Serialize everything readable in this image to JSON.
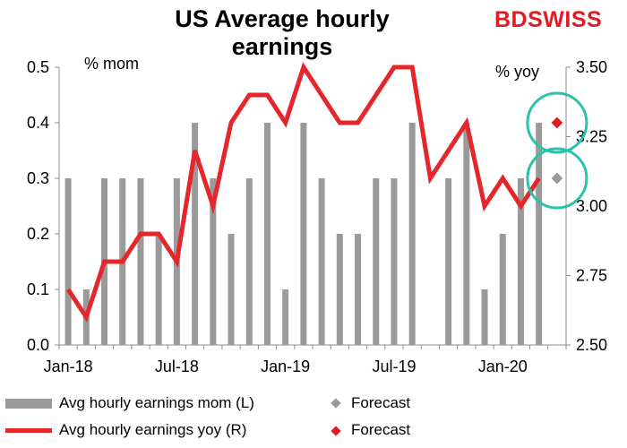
{
  "header": {
    "title_line1": "US Average hourly",
    "title_line2": "earnings",
    "logo_bd": "BD",
    "logo_swiss": "SWISS"
  },
  "axis_units": {
    "left": "% mom",
    "right": "% yoy"
  },
  "legend": {
    "mom": "Avg hourly earnings mom (L)",
    "mom_forecast": "Forecast",
    "yoy": "Avg hourly earnings yoy (R)",
    "yoy_forecast": "Forecast"
  },
  "colors": {
    "bar": "#9a9a9a",
    "line": "#e5262b",
    "forecast_mom": "#9a9a9a",
    "forecast_yoy": "#e11b22",
    "highlight_circle": "#2bc2a9"
  },
  "chart_data": {
    "type": "bar",
    "title": "US Average hourly earnings",
    "x_ticks": [
      "Jan-18",
      "Jul-18",
      "Jan-19",
      "Jul-19",
      "Jan-20"
    ],
    "left_axis": {
      "label": "% mom",
      "ylim": [
        0.0,
        0.5
      ],
      "ticks": [
        "0.0",
        "0.1",
        "0.2",
        "0.3",
        "0.4",
        "0.5"
      ]
    },
    "right_axis": {
      "label": "% yoy",
      "ylim": [
        2.5,
        3.5
      ],
      "ticks": [
        "2.50",
        "2.75",
        "3.00",
        "3.25",
        "3.50"
      ]
    },
    "categories": [
      "Jan-18",
      "Feb-18",
      "Mar-18",
      "Apr-18",
      "May-18",
      "Jun-18",
      "Jul-18",
      "Aug-18",
      "Sep-18",
      "Oct-18",
      "Nov-18",
      "Dec-18",
      "Jan-19",
      "Feb-19",
      "Mar-19",
      "Apr-19",
      "May-19",
      "Jun-19",
      "Jul-19",
      "Aug-19",
      "Sep-19",
      "Oct-19",
      "Nov-19",
      "Dec-19",
      "Jan-20",
      "Feb-20",
      "Mar-20",
      "Apr-20"
    ],
    "series": [
      {
        "name": "Avg hourly earnings mom (L)",
        "type": "bar",
        "axis": "left",
        "values": [
          0.3,
          0.1,
          0.3,
          0.3,
          0.3,
          0.2,
          0.3,
          0.4,
          0.3,
          0.2,
          0.3,
          0.4,
          0.1,
          0.4,
          0.3,
          0.2,
          0.2,
          0.3,
          0.3,
          0.4,
          0.0,
          0.3,
          0.4,
          0.1,
          0.2,
          0.3,
          0.4,
          null
        ]
      },
      {
        "name": "Avg hourly earnings yoy (R)",
        "type": "line",
        "axis": "right",
        "values": [
          2.7,
          2.6,
          2.8,
          2.8,
          2.9,
          2.9,
          2.8,
          3.2,
          3.0,
          3.3,
          3.4,
          3.4,
          3.3,
          3.5,
          3.4,
          3.3,
          3.3,
          3.4,
          3.5,
          3.5,
          3.1,
          3.2,
          3.3,
          3.0,
          3.1,
          3.0,
          3.1,
          null
        ]
      },
      {
        "name": "Forecast",
        "type": "scatter",
        "axis": "left",
        "values": [
          null,
          null,
          null,
          null,
          null,
          null,
          null,
          null,
          null,
          null,
          null,
          null,
          null,
          null,
          null,
          null,
          null,
          null,
          null,
          null,
          null,
          null,
          null,
          null,
          null,
          null,
          null,
          0.3
        ]
      },
      {
        "name": "Forecast",
        "type": "scatter",
        "axis": "right",
        "values": [
          null,
          null,
          null,
          null,
          null,
          null,
          null,
          null,
          null,
          null,
          null,
          null,
          null,
          null,
          null,
          null,
          null,
          null,
          null,
          null,
          null,
          null,
          null,
          null,
          null,
          null,
          null,
          3.3
        ]
      }
    ],
    "grid": false,
    "legend_position": "bottom"
  }
}
